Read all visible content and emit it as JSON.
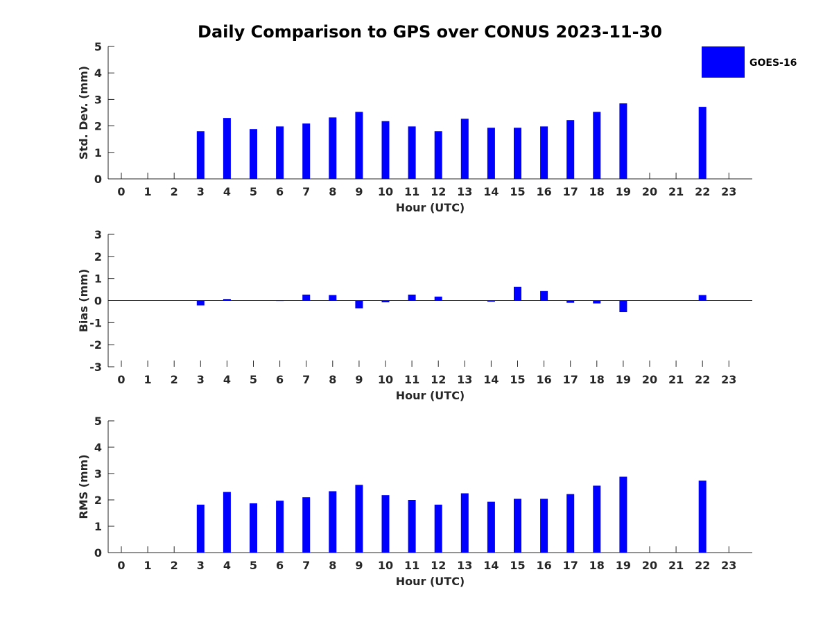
{
  "chart_data": {
    "type": "bar",
    "title": "Daily Comparison to GPS over CONUS 2023-11-30",
    "legend": {
      "label": "GOES-16",
      "placement": "top-right"
    },
    "colors": {
      "bar": "#0000ff",
      "axis": "#262626"
    },
    "categories": [
      "0",
      "1",
      "2",
      "3",
      "4",
      "5",
      "6",
      "7",
      "8",
      "9",
      "10",
      "11",
      "12",
      "13",
      "14",
      "15",
      "16",
      "17",
      "18",
      "19",
      "20",
      "21",
      "22",
      "23"
    ],
    "panels": [
      {
        "id": "std",
        "ylabel": "Std. Dev. (mm)",
        "xlabel": "Hour (UTC)",
        "ylim": [
          0,
          5
        ],
        "yticks": [
          "0",
          "1",
          "2",
          "3",
          "4",
          "5"
        ],
        "values": [
          null,
          null,
          null,
          1.8,
          2.3,
          1.88,
          1.98,
          2.09,
          2.32,
          2.53,
          2.18,
          1.98,
          1.8,
          2.27,
          1.93,
          1.93,
          1.98,
          2.22,
          2.53,
          2.85,
          null,
          null,
          2.72,
          null
        ]
      },
      {
        "id": "bias",
        "ylabel": "Bias (mm)",
        "xlabel": "Hour (UTC)",
        "ylim": [
          -3,
          3
        ],
        "yticks": [
          "-3",
          "-2",
          "-1",
          "0",
          "1",
          "2",
          "3"
        ],
        "values": [
          null,
          null,
          null,
          -0.22,
          0.07,
          0.0,
          -0.02,
          0.27,
          0.25,
          -0.35,
          -0.08,
          0.27,
          0.18,
          0.0,
          -0.05,
          0.62,
          0.43,
          -0.1,
          -0.13,
          -0.52,
          null,
          null,
          0.25,
          null
        ]
      },
      {
        "id": "rms",
        "ylabel": "RMS (mm)",
        "xlabel": "Hour (UTC)",
        "ylim": [
          0,
          5
        ],
        "yticks": [
          "0",
          "1",
          "2",
          "3",
          "4",
          "5"
        ],
        "values": [
          null,
          null,
          null,
          1.82,
          2.3,
          1.87,
          1.97,
          2.1,
          2.33,
          2.57,
          2.18,
          2.0,
          1.82,
          2.25,
          1.93,
          2.04,
          2.04,
          2.22,
          2.54,
          2.88,
          null,
          null,
          2.73,
          null
        ]
      }
    ]
  }
}
